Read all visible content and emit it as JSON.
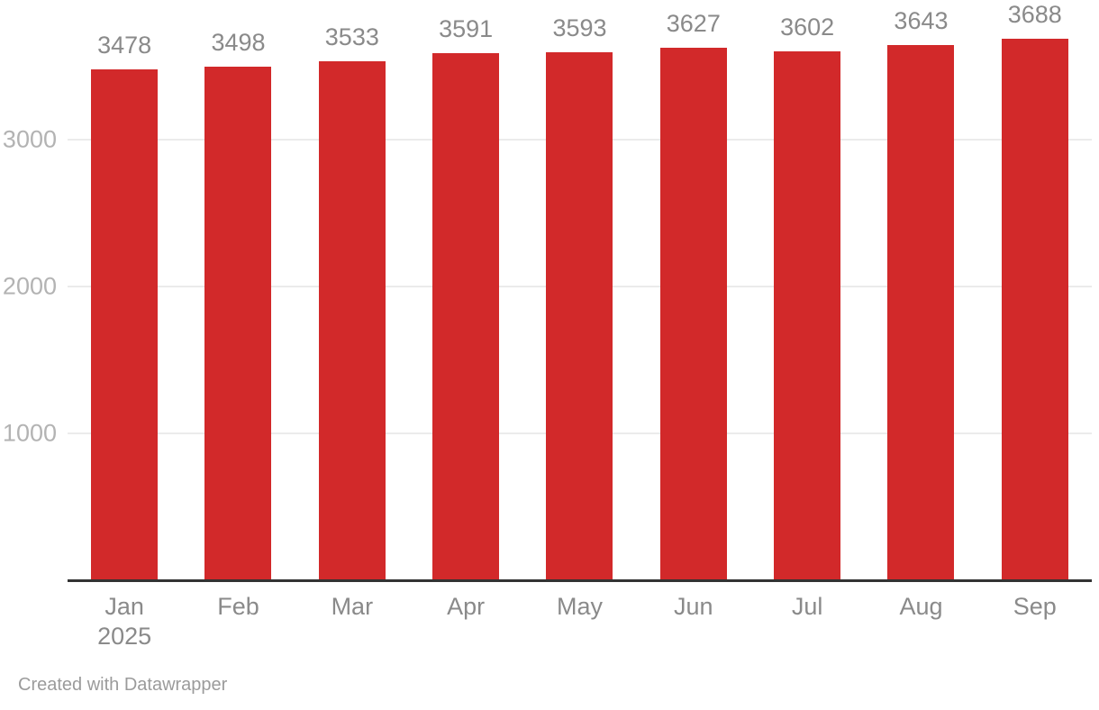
{
  "chart_data": {
    "type": "bar",
    "title": "",
    "xlabel": "",
    "ylabel": "",
    "categories": [
      "Jan 2025",
      "Feb",
      "Mar",
      "Apr",
      "May",
      "Jun",
      "Jul",
      "Aug",
      "Sep"
    ],
    "category_lines": [
      [
        "Jan",
        "2025"
      ],
      [
        "Feb"
      ],
      [
        "Mar"
      ],
      [
        "Apr"
      ],
      [
        "May"
      ],
      [
        "Jun"
      ],
      [
        "Jul"
      ],
      [
        "Aug"
      ],
      [
        "Sep"
      ]
    ],
    "values": [
      3478,
      3498,
      3533,
      3591,
      3593,
      3627,
      3602,
      3643,
      3688
    ],
    "value_labels": [
      "3478",
      "3498",
      "3533",
      "3591",
      "3593",
      "3627",
      "3602",
      "3643",
      "3688"
    ],
    "yticks": [
      1000,
      2000,
      3000
    ],
    "ylim": [
      0,
      3950
    ],
    "grid": true,
    "legend": "none",
    "colors": {
      "bar": "#d2292a",
      "value_label": "#8a8a8a",
      "x_tick_label": "#8a8a8a",
      "y_tick_label": "#b3b3b3",
      "gridline": "#ebebeb",
      "axis_line": "#333333"
    }
  },
  "footer": {
    "credit": "Created with Datawrapper"
  }
}
